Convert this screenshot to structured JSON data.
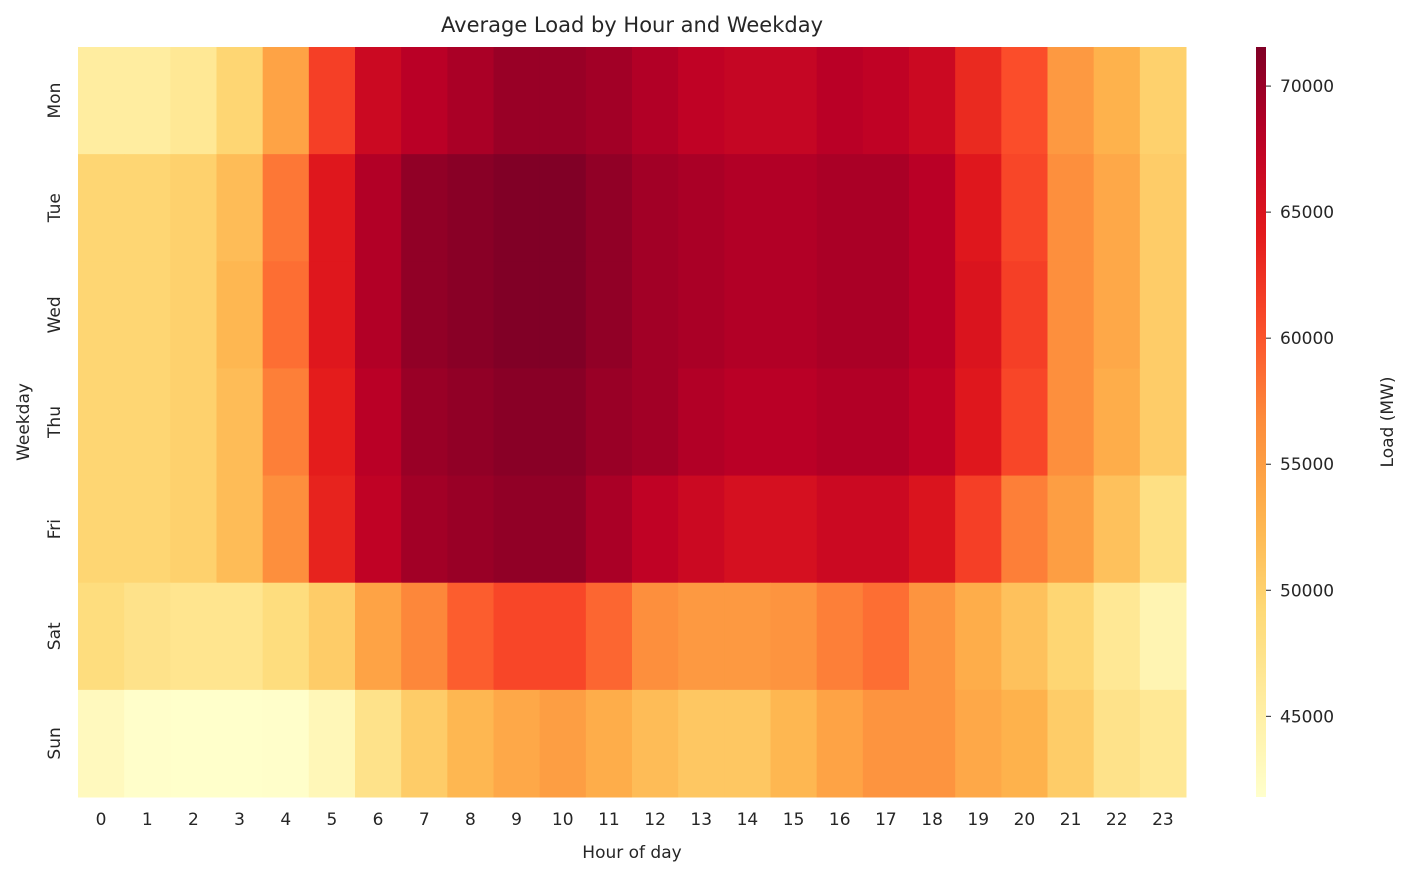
{
  "chart_data": {
    "type": "heatmap",
    "title": "Average Load by Hour and Weekday",
    "xlabel": "Hour of day",
    "ylabel": "Weekday",
    "x": [
      "0",
      "1",
      "2",
      "3",
      "4",
      "5",
      "6",
      "7",
      "8",
      "9",
      "10",
      "11",
      "12",
      "13",
      "14",
      "15",
      "16",
      "17",
      "18",
      "19",
      "20",
      "21",
      "22",
      "23"
    ],
    "y": [
      "Mon",
      "Tue",
      "Wed",
      "Thu",
      "Fri",
      "Sat",
      "Sun"
    ],
    "colormap": "YlOrRd",
    "colorbar": {
      "label": "Load (MW)",
      "range": [
        41800,
        71550
      ],
      "ticks": [
        45000,
        50000,
        55000,
        60000,
        65000,
        70000
      ],
      "tick_labels": [
        "45000",
        "50000",
        "55000",
        "60000",
        "65000",
        "70000"
      ]
    },
    "values": [
      [
        45500,
        45500,
        46500,
        49500,
        54500,
        61500,
        66500,
        68000,
        69000,
        70000,
        70000,
        69500,
        68500,
        67500,
        67000,
        67000,
        68000,
        67500,
        66500,
        63000,
        60500,
        55500,
        53000,
        50000
      ],
      [
        49500,
        49500,
        50000,
        52000,
        58000,
        64500,
        68500,
        70500,
        71000,
        71500,
        71500,
        70500,
        69500,
        69000,
        68500,
        68500,
        69000,
        69000,
        68000,
        64500,
        61000,
        56500,
        54000,
        50500
      ],
      [
        49500,
        49500,
        50000,
        52500,
        58500,
        64500,
        68500,
        70500,
        71000,
        71500,
        71500,
        70500,
        69500,
        69000,
        68500,
        68500,
        69000,
        69000,
        68000,
        65000,
        61500,
        56500,
        54000,
        50500
      ],
      [
        49500,
        49500,
        50000,
        52000,
        57500,
        64000,
        68000,
        70000,
        70500,
        71000,
        71000,
        70000,
        69500,
        68500,
        68000,
        68000,
        68500,
        68500,
        67500,
        64500,
        61000,
        56500,
        53500,
        50500
      ],
      [
        49500,
        49500,
        50000,
        52000,
        56500,
        63500,
        67500,
        69500,
        70000,
        70500,
        70500,
        69000,
        67500,
        66500,
        65500,
        65500,
        66500,
        66500,
        65000,
        61500,
        57500,
        55000,
        51500,
        48000
      ],
      [
        48500,
        47500,
        47000,
        47000,
        48500,
        50500,
        54500,
        57000,
        59500,
        61000,
        61000,
        59000,
        56500,
        55500,
        55500,
        56000,
        57500,
        58500,
        56000,
        53500,
        51500,
        49500,
        46500,
        44000
      ],
      [
        43000,
        42000,
        41900,
        41900,
        42000,
        43500,
        47500,
        50500,
        52500,
        54000,
        55000,
        53500,
        52000,
        51000,
        51000,
        52500,
        54500,
        56000,
        56000,
        54000,
        53000,
        50500,
        47500,
        46500
      ]
    ]
  }
}
